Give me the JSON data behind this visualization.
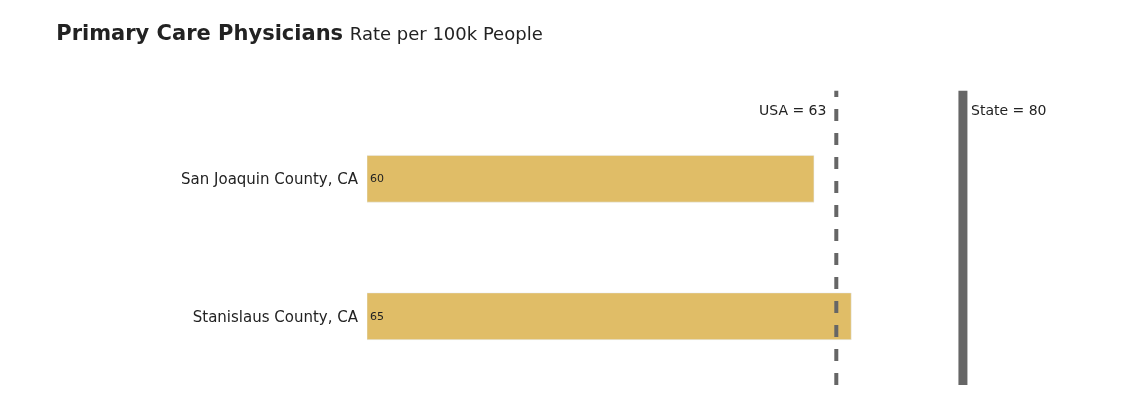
{
  "chart_data": {
    "type": "bar",
    "orientation": "horizontal",
    "title": "Primary Care Physicians",
    "subtitle": "Rate per 100k People",
    "categories": [
      "San Joaquin County, CA",
      "Stanislaus County, CA"
    ],
    "values": [
      60,
      65
    ],
    "color": "#e0bd67",
    "data_labels": true,
    "tick_labels": "y",
    "ref_lines": [
      {
        "axis": "x",
        "value": 63,
        "label": "USA = 63",
        "color": "#666666",
        "line_style": "dashed"
      },
      {
        "axis": "x",
        "value": 80,
        "label": "State = 80",
        "color": "#666666",
        "line_style": "solid"
      }
    ]
  }
}
